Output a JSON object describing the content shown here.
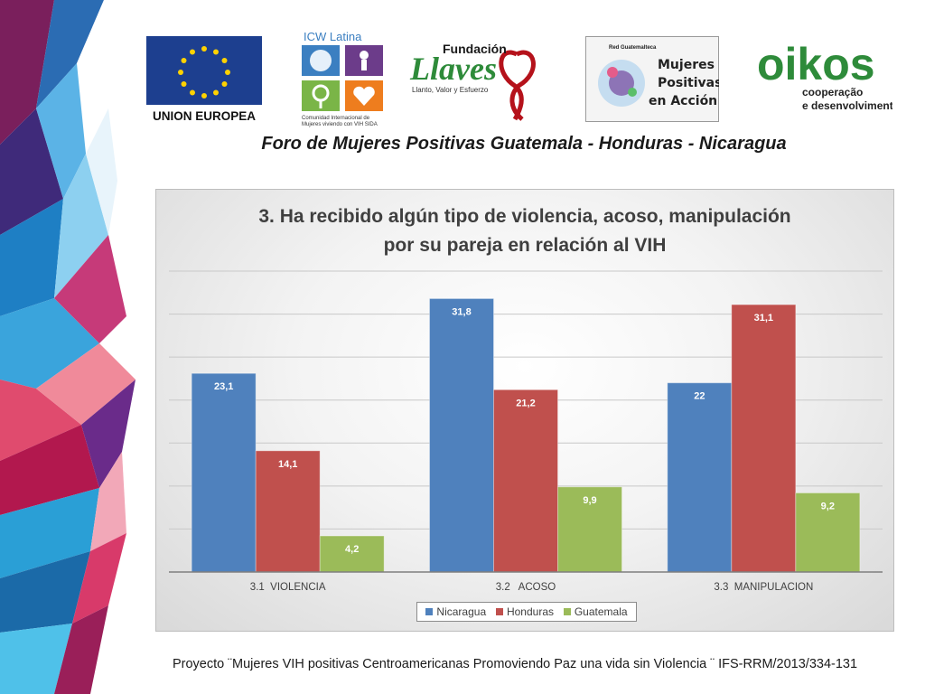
{
  "header": {
    "eu_logo_text": "UNION EUROPEA",
    "icw_logo": {
      "name": "ICW Latina",
      "caption_line1": "Comunidad Internacional de",
      "caption_line2": "Mujeres viviendo con VIH SIDA"
    },
    "llaves_logo": {
      "line1": "Fundación",
      "line2": "Llaves",
      "tagline": "Llanto, Valor y Esfuerzo"
    },
    "mpa_logo": {
      "small": "Red Guatemalteca",
      "line1": "Mujeres",
      "line2": "Positivas",
      "line3": "en Acción"
    },
    "oikos_logo": {
      "name": "oikos",
      "line1": "cooperação",
      "line2": "e desenvolvimento"
    }
  },
  "forum_title": "Foro de Mujeres Positivas Guatemala - Honduras - Nicaragua",
  "chart_data": {
    "type": "bar",
    "title_line1": "3. Ha recibido algún tipo de violencia, acoso, manipulación",
    "title_line2": "por su pareja en relación al VIH",
    "categories": [
      "3.1  VIOLENCIA",
      "3.2   ACOSO",
      "3.3  MANIPULACION"
    ],
    "series": [
      {
        "name": "Nicaragua",
        "values": [
          23.1,
          31.8,
          22
        ],
        "labels": [
          "23,1",
          "31,8",
          "22"
        ],
        "color": "#4f81bd"
      },
      {
        "name": "Honduras",
        "values": [
          14.1,
          21.2,
          31.1
        ],
        "labels": [
          "14,1",
          "21,2",
          "31,1"
        ],
        "color": "#c0504d"
      },
      {
        "name": "Guatemala",
        "values": [
          4.2,
          9.9,
          9.2
        ],
        "labels": [
          "4,2",
          "9,9",
          "9,2"
        ],
        "color": "#9bbb59"
      }
    ],
    "ylim": [
      0,
      35
    ],
    "gridlines": true,
    "legend_position": "bottom"
  },
  "footer": "Proyecto ¨Mujeres VIH positivas Centroamericanas Promoviendo Paz una vida sin Violencia ¨ IFS-RRM/2013/334-131",
  "colors": {
    "eu_blue": "#1d3f8f",
    "eu_star": "#ffd200",
    "icw_blue": "#3b7fc1",
    "icw_purple": "#6c3c8a",
    "icw_green": "#7ab547",
    "icw_orange": "#ee7d1e",
    "llaves_green": "#2e8b3a",
    "ribbon_red": "#b5121b",
    "oikos_green": "#2e8b3a"
  }
}
